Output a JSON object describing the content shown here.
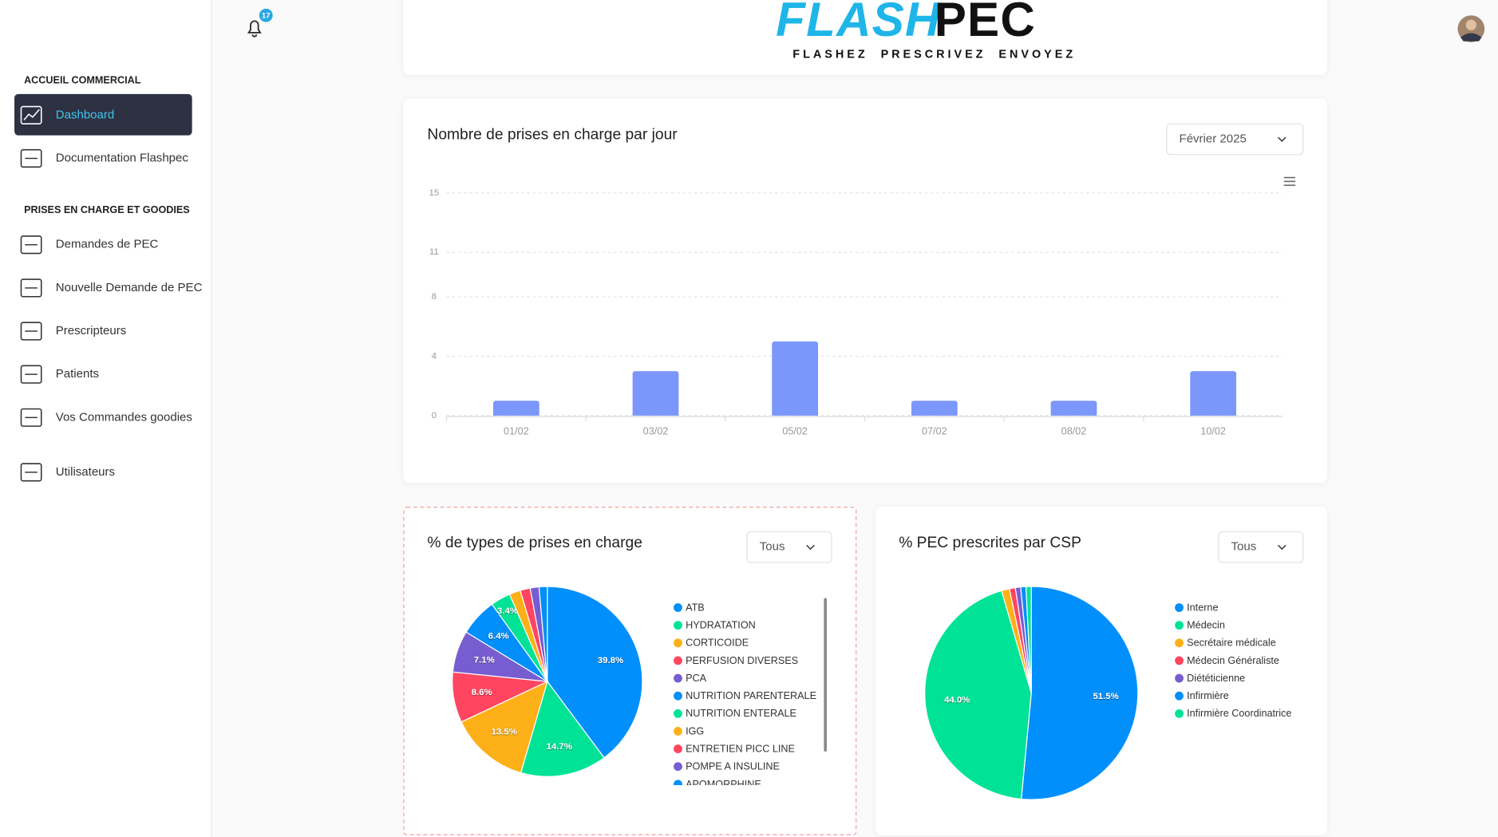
{
  "sidebar": {
    "sections": [
      {
        "title": "ACCUEIL COMMERCIAL",
        "items": [
          "Dashboard",
          "Documentation Flashpec"
        ]
      },
      {
        "title": "PRISES EN CHARGE ET GOODIES",
        "items": [
          "Demandes de PEC",
          "Nouvelle Demande de PEC",
          "Prescripteurs",
          "Patients",
          "Vos Commandes goodies",
          "Utilisateurs"
        ]
      }
    ]
  },
  "header": {
    "logo_part1": "FLASH",
    "logo_part2": "PEC",
    "tagline": "FLASHEZ  PRESCRIVEZ  ENVOYEZ",
    "notifications": 17
  },
  "chart_data": [
    {
      "type": "bar",
      "title": "Nombre de prises en charge par jour",
      "dropdown": "Février 2025",
      "categories": [
        "01/02",
        "03/02",
        "05/02",
        "07/02",
        "08/02",
        "10/02"
      ],
      "values": [
        1,
        3,
        5,
        1,
        1,
        3
      ],
      "color": "#7b97fb",
      "ylim": [
        0,
        15
      ],
      "yticks": [
        0,
        4,
        8,
        11,
        15
      ],
      "grid": true
    },
    {
      "type": "pie",
      "title": "% de types de prises en charge",
      "dropdown": "Tous",
      "categories": [
        "ATB",
        "HYDRATATION",
        "CORTICOIDE",
        "PERFUSION DIVERSES",
        "PCA",
        "NUTRITION PARENTERALE",
        "NUTRITION ENTERALE",
        "IGG",
        "ENTRETIEN PICC LINE",
        "POMPE A INSULINE",
        "APOMORPHINE"
      ],
      "values": [
        39.8,
        14.7,
        13.5,
        8.6,
        7.1,
        6.4,
        3.4,
        1.9,
        1.7,
        1.5,
        1.4
      ],
      "value_labels": [
        "39.8%",
        "14.7%",
        "13.5%",
        "8.6%",
        "7.1%",
        "6.4%",
        "3.4%",
        null,
        null,
        null,
        null
      ],
      "colors": [
        "#008FFB",
        "#00E396",
        "#FEB019",
        "#FF4560",
        "#775DD0",
        "#008FFB",
        "#00E396",
        "#FEB019",
        "#FF4560",
        "#775DD0",
        "#008FFB"
      ]
    },
    {
      "type": "pie",
      "title": "% PEC prescrites par CSP",
      "dropdown": "Tous",
      "categories": [
        "Interne",
        "Médecin",
        "Secrétaire médicale",
        "Médecin Généraliste",
        "Diététicienne",
        "Infirmière",
        "Infirmière Coordinatrice"
      ],
      "values": [
        51.5,
        44.0,
        1.2,
        0.9,
        0.8,
        0.8,
        0.8
      ],
      "value_labels": [
        "51.5%",
        "44.0%",
        null,
        null,
        null,
        null,
        null
      ],
      "colors": [
        "#008FFB",
        "#00E396",
        "#FEB019",
        "#FF4560",
        "#775DD0",
        "#008FFB",
        "#00E396"
      ]
    }
  ]
}
